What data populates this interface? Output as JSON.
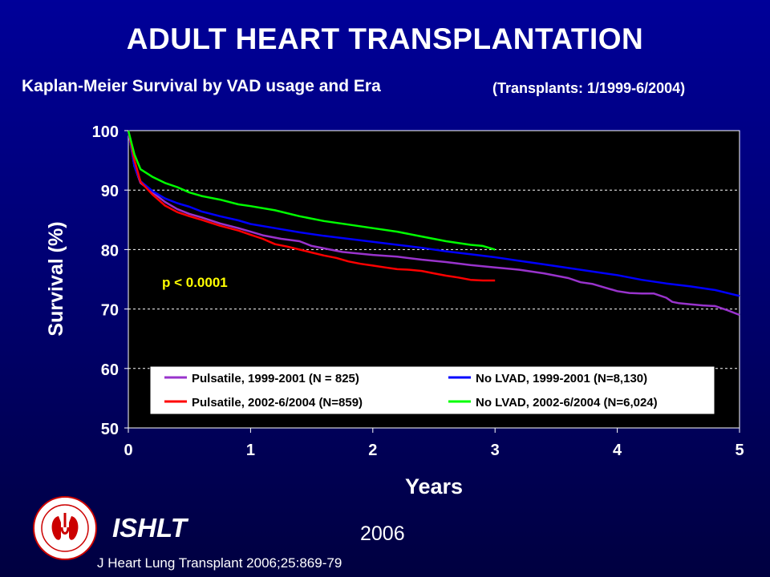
{
  "header": {
    "title": "ADULT HEART TRANSPLANTATION",
    "subtitle": "Kaplan-Meier Survival by VAD usage and Era",
    "era_note": "(Transplants: 1/1999-6/2004)"
  },
  "footer": {
    "org": "ISHLT",
    "year": "2006",
    "citation": "J Heart Lung Transplant 2006;25:869-79"
  },
  "colors": {
    "background": "#000080",
    "plot_background": "#000000",
    "axis_text": "#ffffff",
    "annotation": "#ffff00",
    "pulsatile_1999": "#9933cc",
    "no_lvad_1999": "#0000ff",
    "pulsatile_2002": "#ff0000",
    "no_lvad_2002": "#00ff00"
  },
  "chart_data": {
    "type": "line",
    "title": "ADULT HEART TRANSPLANTATION",
    "subtitle": "Kaplan-Meier Survival by VAD usage and Era",
    "xlabel": "Years",
    "ylabel": "Survival (%)",
    "xlim": [
      0,
      5
    ],
    "ylim": [
      50,
      100
    ],
    "xticks": [
      0,
      1,
      2,
      3,
      4,
      5
    ],
    "yticks": [
      50,
      60,
      70,
      80,
      90,
      100
    ],
    "grid": "horizontal dashed",
    "legend_placement": "bottom-center",
    "annotation": "p < 0.0001",
    "series": [
      {
        "name": "Pulsatile, 1999-2001 (N = 825)",
        "color": "#9933cc",
        "x": [
          0,
          0.05,
          0.1,
          0.2,
          0.3,
          0.4,
          0.5,
          0.6,
          0.75,
          0.9,
          1.0,
          1.1,
          1.25,
          1.4,
          1.5,
          1.6,
          1.75,
          1.9,
          2.0,
          2.2,
          2.4,
          2.6,
          2.8,
          3.0,
          3.2,
          3.4,
          3.6,
          3.7,
          3.8,
          3.9,
          4.0,
          4.1,
          4.2,
          4.3,
          4.4,
          4.45,
          4.5,
          4.6,
          4.7,
          4.8,
          4.9,
          5.0
        ],
        "y": [
          100,
          94,
          91.2,
          89.6,
          88.0,
          86.8,
          86.0,
          85.4,
          84.4,
          83.6,
          83.0,
          82.4,
          81.8,
          81.4,
          80.6,
          80.2,
          79.6,
          79.3,
          79.1,
          78.8,
          78.3,
          77.9,
          77.4,
          77.0,
          76.6,
          76.0,
          75.2,
          74.5,
          74.2,
          73.6,
          73.0,
          72.7,
          72.6,
          72.6,
          71.9,
          71.2,
          71.0,
          70.8,
          70.6,
          70.5,
          69.8,
          69.0
        ]
      },
      {
        "name": "No LVAD, 1999-2001 (N=8,130)",
        "color": "#0000ff",
        "x": [
          0,
          0.05,
          0.1,
          0.2,
          0.3,
          0.4,
          0.5,
          0.6,
          0.75,
          0.9,
          1.0,
          1.2,
          1.4,
          1.6,
          1.8,
          2.0,
          2.2,
          2.4,
          2.6,
          2.8,
          3.0,
          3.2,
          3.4,
          3.6,
          3.8,
          4.0,
          4.2,
          4.4,
          4.6,
          4.8,
          5.0
        ],
        "y": [
          100,
          94,
          91.5,
          89.8,
          88.6,
          87.8,
          87.2,
          86.4,
          85.6,
          84.9,
          84.3,
          83.6,
          82.9,
          82.3,
          81.8,
          81.3,
          80.8,
          80.3,
          79.7,
          79.2,
          78.7,
          78.1,
          77.5,
          76.9,
          76.3,
          75.7,
          74.9,
          74.3,
          73.8,
          73.2,
          72.2
        ]
      },
      {
        "name": "Pulsatile, 2002-6/2004 (N=859)",
        "color": "#ff0000",
        "x": [
          0,
          0.05,
          0.1,
          0.2,
          0.3,
          0.4,
          0.5,
          0.6,
          0.75,
          0.9,
          1.0,
          1.1,
          1.2,
          1.3,
          1.4,
          1.5,
          1.6,
          1.7,
          1.8,
          1.9,
          2.0,
          2.1,
          2.2,
          2.3,
          2.4,
          2.5,
          2.6,
          2.7,
          2.8,
          2.9,
          3.0
        ],
        "y": [
          100,
          95,
          91.4,
          89.2,
          87.4,
          86.3,
          85.6,
          85.0,
          84.0,
          83.2,
          82.5,
          81.8,
          80.9,
          80.5,
          80.0,
          79.5,
          79.0,
          78.6,
          78.0,
          77.6,
          77.3,
          77.0,
          76.7,
          76.6,
          76.4,
          76.0,
          75.6,
          75.3,
          74.9,
          74.8,
          74.8
        ]
      },
      {
        "name": "No LVAD, 2002-6/2004 (N=6,024)",
        "color": "#00ff00",
        "x": [
          0,
          0.05,
          0.1,
          0.2,
          0.3,
          0.4,
          0.5,
          0.6,
          0.75,
          0.9,
          1.0,
          1.2,
          1.4,
          1.6,
          1.8,
          2.0,
          2.2,
          2.4,
          2.6,
          2.8,
          2.9,
          3.0
        ],
        "y": [
          100,
          96,
          93.5,
          92.2,
          91.2,
          90.5,
          89.6,
          89.0,
          88.4,
          87.6,
          87.3,
          86.6,
          85.6,
          84.8,
          84.2,
          83.6,
          83.0,
          82.2,
          81.4,
          80.8,
          80.6,
          80.0
        ]
      }
    ]
  }
}
